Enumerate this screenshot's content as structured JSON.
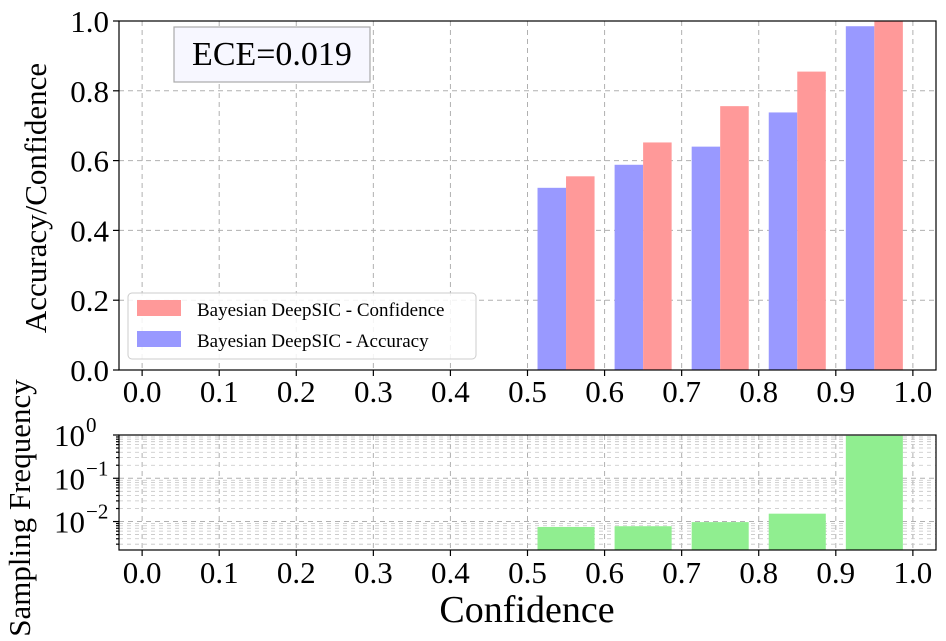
{
  "chart_data": [
    {
      "type": "bar",
      "ylabel": "Accuracy/Confidence",
      "xlim": [
        -0.03,
        1.03
      ],
      "ylim": [
        0,
        1.0
      ],
      "xticks": [
        "0.0",
        "0.1",
        "0.2",
        "0.3",
        "0.4",
        "0.5",
        "0.6",
        "0.7",
        "0.8",
        "0.9",
        "1.0"
      ],
      "yticks": [
        "0.0",
        "0.2",
        "0.4",
        "0.6",
        "0.8",
        "1.0"
      ],
      "grid": true,
      "annotation": "ECE=0.019",
      "legend_position": "lower-left",
      "bins": [
        0.5,
        0.6,
        0.7,
        0.8,
        0.9
      ],
      "bin_width": 0.1,
      "series": [
        {
          "name": "Bayesian DeepSIC - Confidence",
          "color": "#ff9999",
          "values": [
            0.555,
            0.652,
            0.756,
            0.855,
            1.0
          ]
        },
        {
          "name": "Bayesian DeepSIC - Accuracy",
          "color": "#9999ff",
          "values": [
            0.522,
            0.588,
            0.64,
            0.738,
            0.985
          ]
        }
      ]
    },
    {
      "type": "bar",
      "xlabel": "Confidence",
      "ylabel": "Sampling Frequency",
      "yscale": "log",
      "xlim": [
        -0.03,
        1.03
      ],
      "ylim": [
        0.0022,
        1.0
      ],
      "xticks": [
        "0.0",
        "0.1",
        "0.2",
        "0.3",
        "0.4",
        "0.5",
        "0.6",
        "0.7",
        "0.8",
        "0.9",
        "1.0"
      ],
      "yticks": [
        {
          "base": "10",
          "exp": "0"
        },
        {
          "base": "10",
          "exp": "−1"
        },
        {
          "base": "10",
          "exp": "−2"
        }
      ],
      "grid": true,
      "bins": [
        0.5,
        0.6,
        0.7,
        0.8,
        0.9
      ],
      "bin_width": 0.1,
      "color": "#90ee90",
      "values": [
        0.0075,
        0.0078,
        0.0097,
        0.0152,
        0.96
      ]
    }
  ]
}
